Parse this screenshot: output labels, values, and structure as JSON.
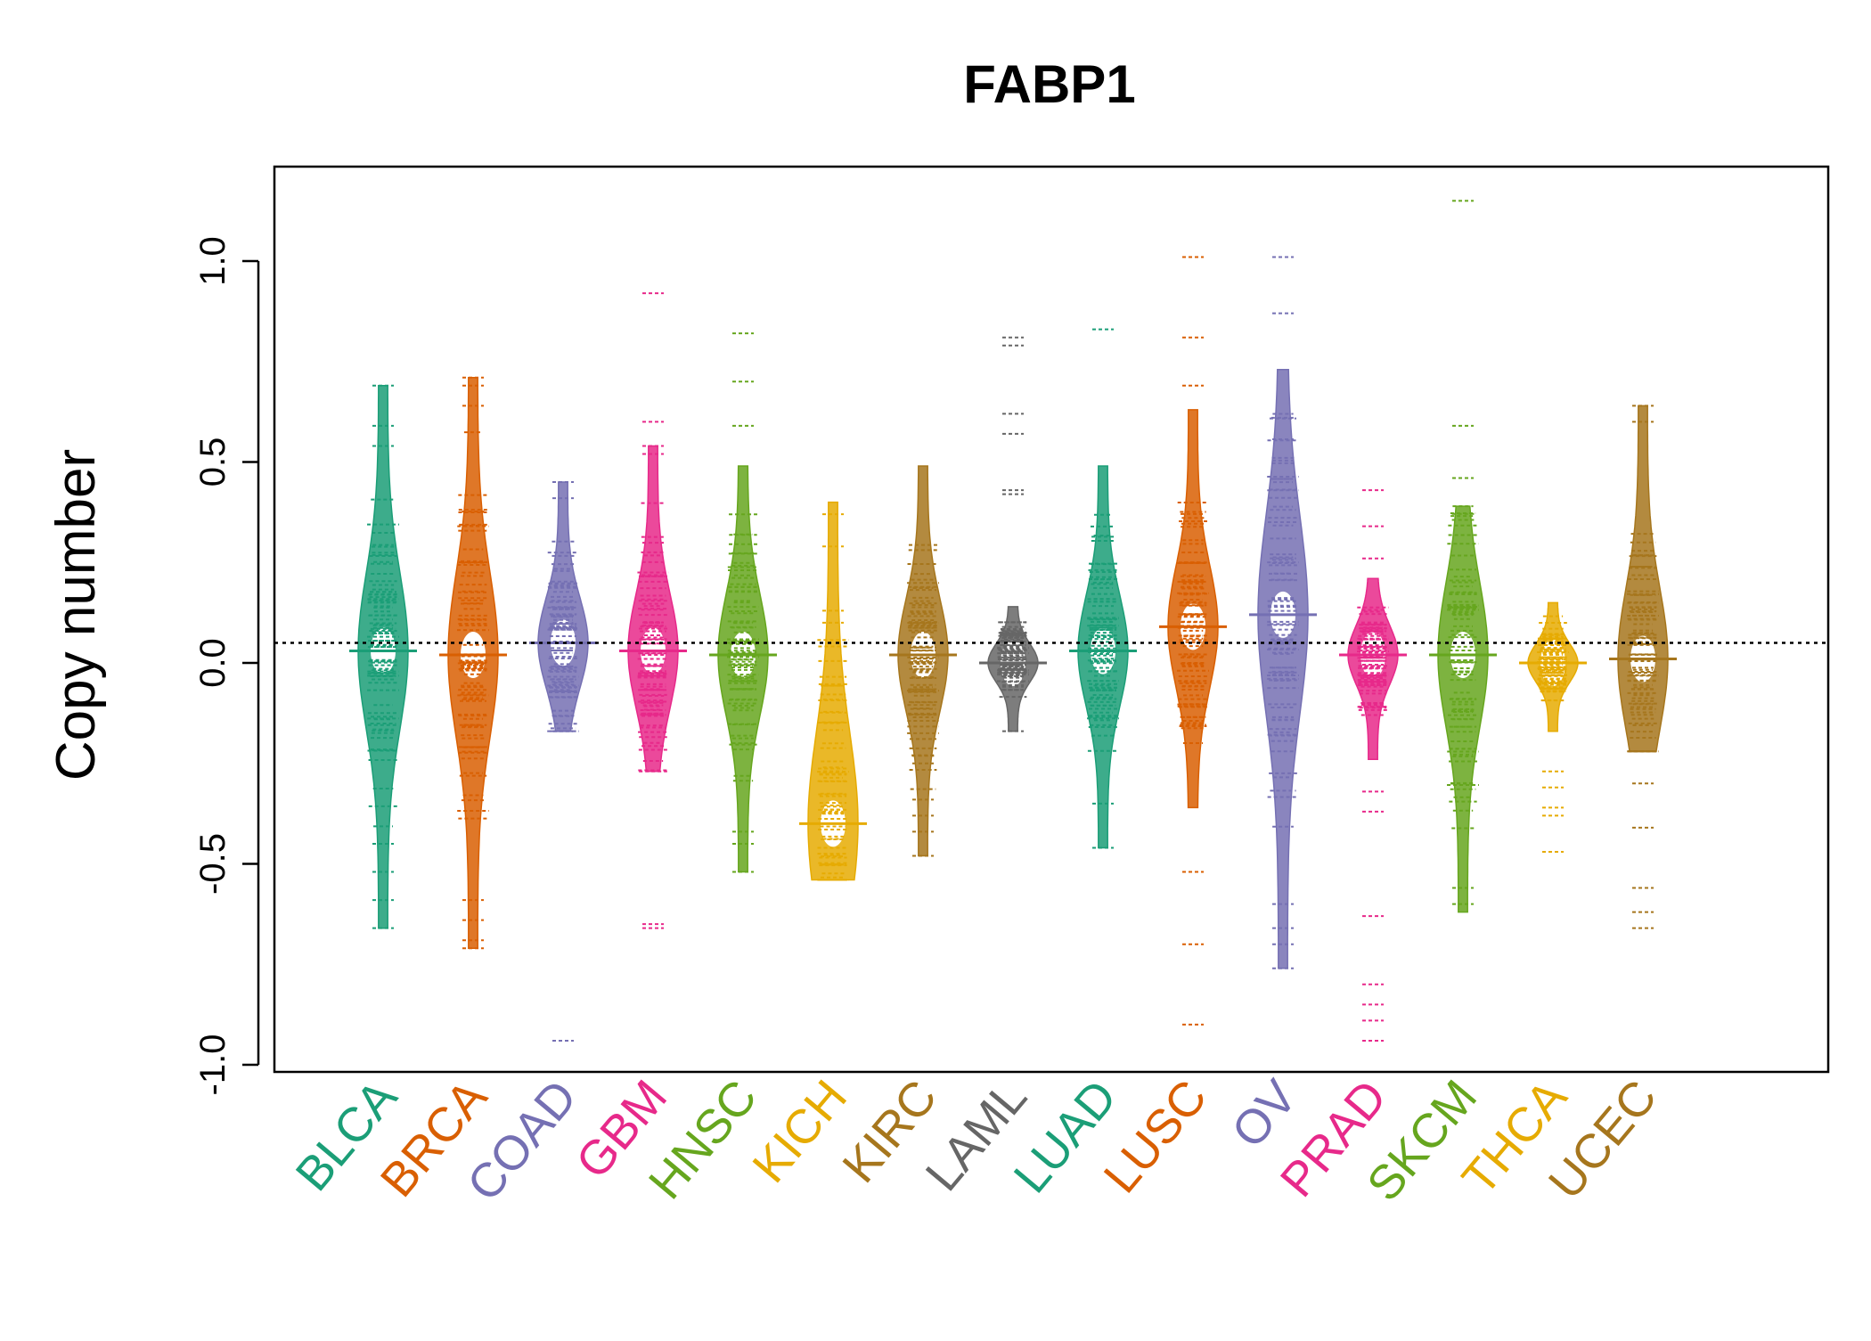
{
  "chart_data": {
    "type": "beanplot",
    "title": "FABP1",
    "ylabel": "Copy number",
    "xlabel": "",
    "ylim": [
      -1.0,
      1.2
    ],
    "yticks": [
      "-1.0",
      "-0.5",
      "0.0",
      "0.5",
      "1.0"
    ],
    "ytick_values": [
      -1.0,
      -0.5,
      0.0,
      0.5,
      1.0
    ],
    "reference_line": 0.05,
    "grid": false,
    "categories": [
      "BLCA",
      "BRCA",
      "COAD",
      "GBM",
      "HNSC",
      "KICH",
      "KIRC",
      "LAML",
      "LUAD",
      "LUSC",
      "OV",
      "PRAD",
      "SKCM",
      "THCA",
      "UCEC"
    ],
    "colors": [
      "#1B9E77",
      "#D95F02",
      "#7570B3",
      "#E7298A",
      "#66A61E",
      "#E6AB02",
      "#A6761D",
      "#666666",
      "#1B9E77",
      "#D95F02",
      "#7570B3",
      "#E7298A",
      "#66A61E",
      "#E6AB02",
      "#A6761D"
    ],
    "series": [
      {
        "category": "BLCA",
        "min": -0.66,
        "max": 0.69,
        "mean": 0.03,
        "outliers": [
          0.69,
          0.59,
          0.54,
          -0.45,
          -0.52,
          -0.59,
          -0.66
        ]
      },
      {
        "category": "BRCA",
        "min": -0.71,
        "max": 0.71,
        "mean": 0.02,
        "outliers": [
          0.71,
          0.69,
          0.64,
          -0.59,
          -0.64,
          -0.69,
          -0.71
        ]
      },
      {
        "category": "COAD",
        "min": -0.17,
        "max": 0.45,
        "mean": 0.05,
        "outliers": [
          0.45,
          0.41,
          -0.94
        ]
      },
      {
        "category": "GBM",
        "min": -0.27,
        "max": 0.54,
        "mean": 0.03,
        "outliers": [
          0.92,
          0.6,
          0.54,
          0.52,
          -0.65,
          -0.66
        ]
      },
      {
        "category": "HNSC",
        "min": -0.52,
        "max": 0.49,
        "mean": 0.02,
        "outliers": [
          0.82,
          0.7,
          0.59,
          -0.42,
          -0.45,
          -0.52
        ]
      },
      {
        "category": "KICH",
        "min": -0.54,
        "max": 0.4,
        "mean": -0.4,
        "outliers": [
          0.37,
          0.29,
          0.13,
          0.1
        ]
      },
      {
        "category": "KIRC",
        "min": -0.48,
        "max": 0.49,
        "mean": 0.02,
        "outliers": [
          -0.25,
          -0.34,
          -0.38,
          -0.42,
          -0.48
        ]
      },
      {
        "category": "LAML",
        "min": -0.17,
        "max": 0.14,
        "mean": 0.0,
        "outliers": [
          0.81,
          0.79,
          0.62,
          0.57,
          0.43,
          0.42,
          -0.17
        ]
      },
      {
        "category": "LUAD",
        "min": -0.46,
        "max": 0.49,
        "mean": 0.03,
        "outliers": [
          0.83,
          -0.35,
          -0.46
        ]
      },
      {
        "category": "LUSC",
        "min": -0.36,
        "max": 0.63,
        "mean": 0.09,
        "outliers": [
          1.01,
          0.81,
          0.69,
          -0.52,
          -0.7,
          -0.9
        ]
      },
      {
        "category": "OV",
        "min": -0.76,
        "max": 0.73,
        "mean": 0.12,
        "outliers": [
          1.01,
          0.87,
          -0.6,
          -0.66,
          -0.7,
          -0.76
        ]
      },
      {
        "category": "PRAD",
        "min": -0.24,
        "max": 0.21,
        "mean": 0.02,
        "outliers": [
          0.43,
          0.34,
          0.26,
          -0.32,
          -0.37,
          -0.63,
          -0.8,
          -0.85,
          -0.89,
          -0.94
        ]
      },
      {
        "category": "SKCM",
        "min": -0.62,
        "max": 0.39,
        "mean": 0.02,
        "outliers": [
          1.15,
          0.59,
          0.46,
          -0.56,
          -0.6
        ]
      },
      {
        "category": "THCA",
        "min": -0.17,
        "max": 0.15,
        "mean": 0.0,
        "outliers": [
          -0.27,
          -0.31,
          -0.36,
          -0.38,
          -0.47
        ]
      },
      {
        "category": "UCEC",
        "min": -0.22,
        "max": 0.64,
        "mean": 0.01,
        "outliers": [
          0.64,
          0.6,
          -0.3,
          -0.41,
          -0.56,
          -0.62,
          -0.66
        ]
      }
    ]
  }
}
